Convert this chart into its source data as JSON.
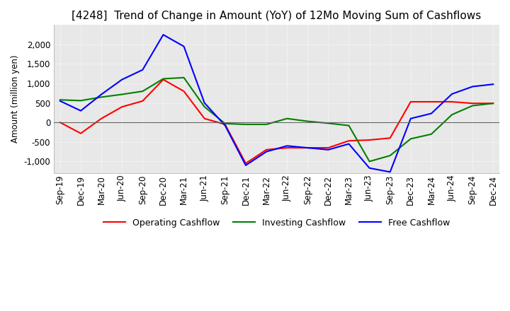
{
  "title": "[4248]  Trend of Change in Amount (YoY) of 12Mo Moving Sum of Cashflows",
  "ylabel": "Amount (million yen)",
  "x_labels": [
    "Sep-19",
    "Dec-19",
    "Mar-20",
    "Jun-20",
    "Sep-20",
    "Dec-20",
    "Mar-21",
    "Jun-21",
    "Sep-21",
    "Dec-21",
    "Mar-22",
    "Jun-22",
    "Sep-22",
    "Dec-22",
    "Mar-23",
    "Jun-23",
    "Sep-23",
    "Dec-23",
    "Mar-24",
    "Jun-24",
    "Sep-24",
    "Dec-24"
  ],
  "operating": [
    0,
    -280,
    100,
    400,
    550,
    1100,
    800,
    100,
    -50,
    -1050,
    -700,
    -650,
    -650,
    -650,
    -470,
    -450,
    -400,
    530,
    530,
    530,
    490,
    490
  ],
  "investing": [
    580,
    560,
    650,
    720,
    800,
    1120,
    1150,
    400,
    -30,
    -50,
    -50,
    100,
    30,
    -20,
    -80,
    -1000,
    -850,
    -420,
    -300,
    200,
    430,
    490
  ],
  "free": [
    550,
    300,
    720,
    1100,
    1350,
    2250,
    1950,
    500,
    -80,
    -1100,
    -750,
    -600,
    -650,
    -700,
    -550,
    -1170,
    -1270,
    100,
    230,
    730,
    920,
    980
  ],
  "ylim": [
    -1300,
    2500
  ],
  "yticks": [
    -1000,
    -500,
    0,
    500,
    1000,
    1500,
    2000
  ],
  "operating_color": "#ff0000",
  "investing_color": "#008000",
  "free_color": "#0000ff",
  "bg_color": "#ffffff",
  "plot_bg_color": "#e8e8e8",
  "grid_color": "#ffffff",
  "title_fontsize": 11,
  "axis_fontsize": 8.5,
  "legend_fontsize": 9
}
